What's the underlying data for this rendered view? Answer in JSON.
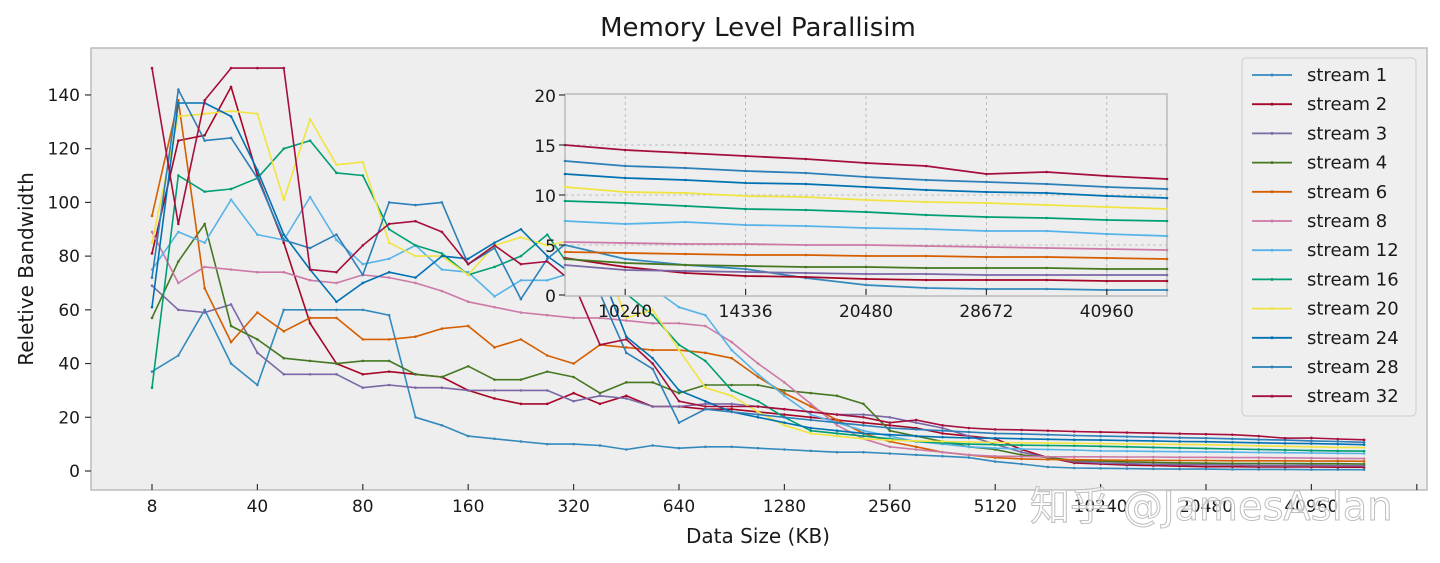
{
  "chart_data": {
    "type": "line",
    "title": "Memory Level Parallisim",
    "xlabel": "Data Size (KB)",
    "ylabel": "Reletive Bandwidth",
    "x_scale": "categorical",
    "x": [
      8,
      16,
      24,
      32,
      40,
      50,
      60,
      70,
      80,
      100,
      120,
      140,
      160,
      200,
      240,
      280,
      320,
      400,
      480,
      560,
      640,
      800,
      960,
      1120,
      1280,
      1600,
      1920,
      2240,
      2560,
      3200,
      3840,
      4480,
      5120,
      6400,
      7680,
      8960,
      10240,
      12800,
      15360,
      17920,
      20480,
      25600,
      30720,
      35840,
      40960,
      51200,
      61440
    ],
    "xtick_labels": [
      "8",
      "40",
      "80",
      "160",
      "320",
      "640",
      "1280",
      "2560",
      "5120",
      "10240",
      "20480",
      "40960",
      ""
    ],
    "ytick_labels": [
      "0",
      "20",
      "40",
      "60",
      "80",
      "100",
      "120",
      "140"
    ],
    "yticks": [
      0,
      20,
      40,
      60,
      80,
      100,
      120,
      140
    ],
    "ylim": [
      -7,
      157
    ],
    "grid": false,
    "legend_position": "right",
    "series": [
      {
        "name": "stream 1",
        "color": "#348ABD",
        "values": [
          37,
          43,
          60,
          40,
          32,
          60,
          60,
          60,
          60,
          58,
          20,
          17,
          13,
          12,
          11,
          10,
          10,
          9.5,
          8,
          9.5,
          8.5,
          9,
          9,
          8.5,
          8,
          7.5,
          7,
          7,
          6.5,
          6,
          5.5,
          5,
          3.5,
          2.6,
          1.5,
          1.1,
          1.0,
          0.9,
          0.8,
          0.7,
          0.7,
          0.6,
          0.6,
          0.6,
          0.5,
          0.5,
          0.5
        ]
      },
      {
        "name": "stream 2",
        "color": "#A60628",
        "values": [
          81,
          123,
          125,
          143,
          110,
          85,
          55,
          40,
          36,
          37,
          36,
          35,
          30,
          27,
          25,
          25,
          29,
          25,
          28,
          24,
          24,
          23,
          23,
          22,
          21,
          20,
          19,
          18,
          17,
          16,
          14,
          13,
          12,
          8,
          5,
          3,
          2.6,
          2.2,
          2.0,
          1.8,
          1.6,
          1.6,
          1.5,
          1.5,
          1.5,
          1.4,
          1.4
        ]
      },
      {
        "name": "stream 3",
        "color": "#7A68A6",
        "values": [
          69,
          60,
          59,
          62,
          44,
          36,
          36,
          36,
          31,
          32,
          31,
          31,
          30,
          30,
          30,
          30,
          26,
          28,
          27,
          24,
          24,
          25,
          25,
          24,
          23,
          22,
          21,
          21,
          20,
          18,
          16,
          13,
          10,
          7,
          5,
          3.5,
          3.0,
          2.7,
          2.5,
          2.4,
          2.3,
          2.2,
          2.1,
          2.1,
          2.1,
          2.0,
          2.0
        ]
      },
      {
        "name": "stream 4",
        "color": "#467821",
        "values": [
          57,
          78,
          92,
          54,
          49,
          42,
          41,
          40,
          41,
          41,
          36,
          35,
          39,
          34,
          34,
          37,
          35,
          29,
          33,
          33,
          29,
          32,
          32,
          32,
          30,
          29,
          28,
          25,
          15,
          13,
          11,
          9,
          8,
          6,
          5,
          4,
          3.7,
          3.4,
          3.2,
          3.0,
          2.9,
          2.8,
          2.8,
          2.8,
          2.7,
          2.7,
          2.6
        ]
      },
      {
        "name": "stream 6",
        "color": "#D55E00",
        "values": [
          95,
          138,
          68,
          48,
          59,
          52,
          57,
          57,
          49,
          49,
          50,
          53,
          54,
          46,
          49,
          43,
          40,
          47,
          46,
          45,
          45,
          44,
          42,
          35,
          29,
          24,
          19,
          14,
          11,
          9,
          7,
          6,
          5,
          4.5,
          4.3,
          4.2,
          4.1,
          4.0,
          4.0,
          3.9,
          3.9,
          3.8,
          3.8,
          3.8,
          3.7,
          3.7,
          3.6
        ]
      },
      {
        "name": "stream 8",
        "color": "#CC79A7",
        "values": [
          89,
          70,
          76,
          75,
          74,
          74,
          71,
          70,
          73,
          72,
          70,
          67,
          63,
          61,
          59,
          58,
          57,
          57,
          56,
          55,
          55,
          54,
          48,
          40,
          33,
          25,
          17,
          12,
          9,
          8,
          7,
          6,
          5.5,
          5.4,
          5.3,
          5.3,
          5.3,
          5.2,
          5.2,
          5.1,
          5.1,
          5.0,
          5.0,
          4.9,
          4.8,
          4.7,
          4.6
        ]
      },
      {
        "name": "stream 12",
        "color": "#56B4E9",
        "values": [
          75,
          89,
          85,
          101,
          88,
          86,
          102,
          86,
          77,
          79,
          84,
          75,
          74,
          65,
          71,
          71,
          74,
          76,
          70,
          68,
          61,
          58,
          45,
          36,
          28,
          21,
          18,
          15,
          13,
          11,
          10,
          9,
          8.5,
          8.2,
          8.0,
          7.8,
          7.5,
          7.4,
          7.3,
          7.2,
          7.1,
          7.0,
          6.9,
          6.8,
          6.7,
          6.6,
          6.5
        ]
      },
      {
        "name": "stream 16",
        "color": "#009E73",
        "values": [
          31,
          110,
          104,
          105,
          109,
          120,
          123,
          111,
          110,
          90,
          84,
          81,
          73,
          76,
          80,
          88,
          74,
          70,
          66,
          58,
          47,
          41,
          30,
          26,
          20,
          15,
          14,
          13,
          12,
          11,
          10.5,
          10,
          9.8,
          9.6,
          9.5,
          9.4,
          9.2,
          9.0,
          8.8,
          8.6,
          8.4,
          8.2,
          8.0,
          7.8,
          7.6,
          7.5,
          7.4
        ]
      },
      {
        "name": "stream 20",
        "color": "#F0E442",
        "values": [
          85,
          132,
          133,
          134,
          133,
          101,
          131,
          114,
          115,
          85,
          80,
          80,
          73,
          84,
          87,
          84,
          86,
          82,
          57,
          60,
          45,
          31,
          28,
          22,
          17,
          14,
          13,
          12,
          11.5,
          11.2,
          11,
          10.8,
          10.6,
          10.5,
          10.4,
          10.3,
          10.2,
          10.1,
          10.0,
          9.9,
          9.8,
          9.6,
          9.4,
          9.2,
          9.0,
          8.8,
          8.7
        ]
      },
      {
        "name": "stream 24",
        "color": "#0072B2",
        "values": [
          61,
          137,
          137,
          132,
          112,
          88,
          75,
          63,
          70,
          74,
          72,
          80,
          79,
          85,
          90,
          80,
          73,
          75,
          50,
          42,
          30,
          26,
          22,
          20,
          18,
          16,
          15,
          14,
          13.5,
          13,
          12.6,
          12.3,
          12.2,
          12.0,
          11.8,
          11.6,
          11.5,
          11.3,
          11.2,
          11.0,
          10.9,
          10.7,
          10.5,
          10.3,
          10.2,
          10.0,
          9.8
        ]
      },
      {
        "name": "stream 28",
        "color": "#2C7FB8",
        "values": [
          72,
          142,
          123,
          124,
          109,
          86,
          83,
          88,
          73,
          100,
          99,
          100,
          77,
          83,
          64,
          79,
          87,
          66,
          44,
          38,
          18,
          23,
          22,
          21,
          20,
          19,
          18,
          17,
          16,
          15.5,
          15,
          14.5,
          14,
          13.8,
          13.5,
          13.2,
          13.0,
          12.8,
          12.6,
          12.4,
          12.2,
          12.0,
          11.7,
          11.5,
          11.2,
          11.0,
          10.7
        ]
      },
      {
        "name": "stream 32",
        "color": "#A50F3C",
        "values": [
          150,
          92,
          138,
          150,
          150,
          150,
          75,
          74,
          84,
          92,
          93,
          89,
          77,
          84,
          77,
          78,
          70,
          47,
          49,
          40,
          26,
          24,
          24,
          24,
          23,
          22,
          21,
          20,
          18,
          19,
          17,
          16,
          15.5,
          15.3,
          15.0,
          14.7,
          14.5,
          14.3,
          14.1,
          13.9,
          13.7,
          13.5,
          13.0,
          12.2,
          12.3,
          11.9,
          11.6
        ]
      }
    ],
    "inset": {
      "xtick_labels": [
        "10240",
        "14336",
        "20480",
        "28672",
        "40960"
      ],
      "ytick_labels": [
        "0",
        "5",
        "10",
        "15",
        "20"
      ],
      "yticks": [
        0,
        5,
        10,
        15,
        20
      ],
      "ylim": [
        0,
        20
      ],
      "grid": true,
      "series": [
        {
          "name": "stream 1",
          "values": [
            5.0,
            3.6,
            3.0,
            2.6,
            1.7,
            1.0,
            0.7,
            0.6,
            0.6,
            0.5,
            0.5
          ]
        },
        {
          "name": "stream 2",
          "values": [
            3.7,
            2.8,
            2.2,
            1.9,
            1.8,
            1.6,
            1.5,
            1.5,
            1.5,
            1.4,
            1.4
          ]
        },
        {
          "name": "stream 3",
          "values": [
            3.0,
            2.5,
            2.4,
            2.3,
            2.2,
            2.1,
            2.1,
            2.0,
            2.0,
            2.0,
            2.0
          ]
        },
        {
          "name": "stream 4",
          "values": [
            3.6,
            3.2,
            3.0,
            2.9,
            2.8,
            2.8,
            2.7,
            2.7,
            2.7,
            2.6,
            2.6
          ]
        },
        {
          "name": "stream 6",
          "values": [
            4.3,
            4.2,
            4.1,
            4.0,
            4.0,
            3.9,
            3.9,
            3.8,
            3.8,
            3.7,
            3.6
          ]
        },
        {
          "name": "stream 8",
          "values": [
            5.3,
            5.2,
            5.1,
            5.1,
            5.0,
            5.0,
            4.9,
            4.8,
            4.7,
            4.6,
            4.5
          ]
        },
        {
          "name": "stream 12",
          "values": [
            7.4,
            7.1,
            7.3,
            7.0,
            6.9,
            6.7,
            6.6,
            6.4,
            6.4,
            6.1,
            5.9
          ]
        },
        {
          "name": "stream 16",
          "values": [
            9.4,
            9.2,
            8.9,
            8.6,
            8.5,
            8.3,
            8.0,
            7.8,
            7.7,
            7.5,
            7.4
          ]
        },
        {
          "name": "stream 20",
          "values": [
            10.8,
            10.3,
            10.2,
            9.9,
            9.8,
            9.5,
            9.3,
            9.2,
            9.0,
            8.8,
            8.6
          ]
        },
        {
          "name": "stream 24",
          "values": [
            12.1,
            11.7,
            11.5,
            11.2,
            11.1,
            10.8,
            10.5,
            10.3,
            10.2,
            9.9,
            9.7
          ]
        },
        {
          "name": "stream 28",
          "values": [
            13.4,
            12.9,
            12.7,
            12.4,
            12.2,
            11.8,
            11.5,
            11.3,
            11.1,
            10.8,
            10.6
          ]
        },
        {
          "name": "stream 32",
          "values": [
            15.0,
            14.5,
            14.2,
            13.9,
            13.6,
            13.2,
            12.9,
            12.1,
            12.3,
            11.9,
            11.6
          ]
        }
      ]
    }
  },
  "watermark": "知乎 @JamesAslan"
}
